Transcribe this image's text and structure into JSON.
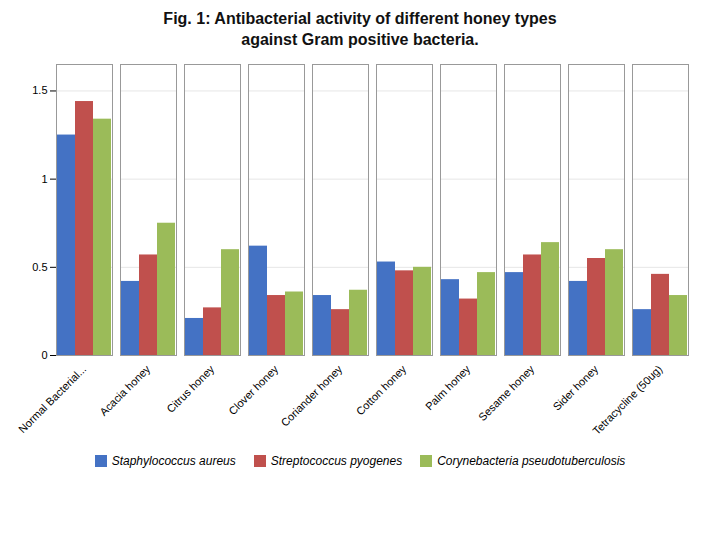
{
  "chart_data": {
    "type": "bar",
    "title": "Fig. 1: Antibacterial activity of different honey types",
    "subtitle": "against Gram positive bacteria.",
    "categories": [
      "Normal Bacterial...",
      "Acacia honey",
      "Citrus honey",
      "Clover honey",
      "Coriander honey",
      "Cotton honey",
      "Palm honey",
      "Sesame honey",
      "Sider honey",
      "Tetracycline (50ug)"
    ],
    "series": [
      {
        "name": "Staphylococcus aureus",
        "color": "#4472C4",
        "values": [
          1.25,
          0.42,
          0.21,
          0.62,
          0.34,
          0.53,
          0.43,
          0.47,
          0.42,
          0.26
        ]
      },
      {
        "name": "Streptococcus pyogenes",
        "color": "#C0504D",
        "values": [
          1.44,
          0.57,
          0.27,
          0.34,
          0.26,
          0.48,
          0.32,
          0.57,
          0.55,
          0.46
        ]
      },
      {
        "name": "Corynebacteria pseudotuberculosis",
        "color": "#9BBB59",
        "values": [
          1.34,
          0.75,
          0.6,
          0.36,
          0.37,
          0.5,
          0.47,
          0.64,
          0.6,
          0.34
        ]
      }
    ],
    "ylim": [
      0,
      1.65
    ],
    "yticks": [
      0,
      0.5,
      1,
      1.5
    ],
    "grid": true,
    "legend": "bottom"
  }
}
